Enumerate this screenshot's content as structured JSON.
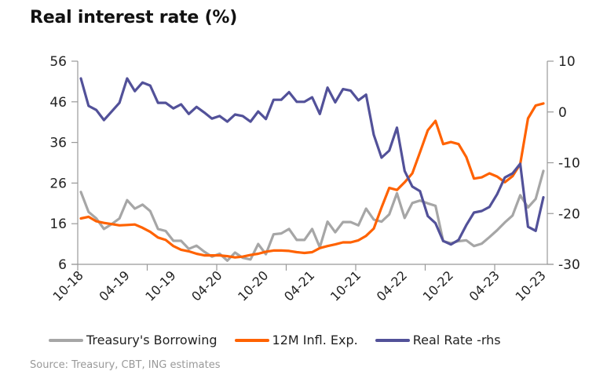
{
  "header": {
    "title": "Real interest rate (%)"
  },
  "source": "Source: Treasury, CBT, ING estimates",
  "chart_data": {
    "type": "line",
    "title": "Real interest rate (%)",
    "xlabel": "",
    "ylabel": "",
    "x_tick_labels": [
      "10-18",
      "04-19",
      "10-19",
      "04-20",
      "10-20",
      "04-21",
      "10-21",
      "04-22",
      "10-22",
      "04-23",
      "10-23"
    ],
    "left_axis": {
      "ticks": [
        56,
        46,
        36,
        26,
        16,
        6
      ],
      "ylim": [
        6,
        56
      ]
    },
    "right_axis": {
      "ticks": [
        10,
        0,
        -10,
        -20,
        -30
      ],
      "ylim": [
        -30,
        10
      ]
    },
    "grid": false,
    "legend_position": "bottom",
    "series": [
      {
        "name": "Treasury's Borrowing",
        "axis": "left",
        "color": "#a6a6a6",
        "values": [
          23.8,
          18.9,
          17.3,
          14.7,
          15.9,
          17.3,
          21.8,
          19.7,
          20.7,
          19.1,
          14.7,
          14.2,
          11.8,
          11.8,
          9.8,
          10.6,
          9.1,
          7.9,
          8.6,
          6.9,
          8.9,
          7.6,
          7.2,
          11.0,
          8.5,
          13.4,
          13.6,
          14.7,
          12.0,
          12.0,
          14.7,
          10.2,
          16.5,
          13.9,
          16.4,
          16.4,
          15.6,
          19.7,
          17.0,
          16.5,
          18.3,
          23.5,
          17.4,
          21.1,
          21.7,
          21.0,
          20.4,
          11.7,
          11.2,
          11.7,
          11.9,
          10.5,
          11.1,
          12.7,
          14.4,
          16.3,
          18.0,
          23.0,
          20.0,
          22.1,
          29.0
        ]
      },
      {
        "name": "12M Infl. Exp.",
        "axis": "left",
        "color": "#ff6200",
        "values": [
          17.3,
          17.7,
          16.6,
          16.2,
          15.9,
          15.6,
          15.7,
          15.8,
          15.0,
          14.0,
          12.6,
          12.0,
          10.5,
          9.6,
          9.2,
          8.6,
          8.2,
          8.2,
          8.2,
          8.0,
          7.7,
          7.9,
          8.3,
          8.6,
          9.1,
          9.4,
          9.4,
          9.3,
          9.0,
          8.8,
          9.0,
          10.0,
          10.5,
          10.9,
          11.4,
          11.4,
          11.9,
          13.0,
          14.8,
          20.0,
          24.8,
          24.3,
          26.2,
          28.4,
          33.6,
          39.0,
          41.3,
          35.6,
          36.1,
          35.6,
          32.4,
          27.1,
          27.4,
          28.4,
          27.6,
          26.2,
          27.7,
          30.7,
          41.9,
          45.1,
          45.6
        ]
      },
      {
        "name": "Real Rate -rhs",
        "axis": "right",
        "color": "#525199",
        "values": [
          6.6,
          1.2,
          0.4,
          -1.6,
          0.1,
          1.8,
          6.6,
          4.1,
          5.8,
          5.2,
          1.8,
          1.8,
          0.7,
          1.5,
          -0.4,
          1.0,
          -0.1,
          -1.3,
          -0.8,
          -1.9,
          -0.5,
          -0.8,
          -1.9,
          0.1,
          -1.4,
          2.4,
          2.4,
          3.9,
          2.0,
          2.0,
          2.9,
          -0.4,
          4.8,
          1.9,
          4.5,
          4.2,
          2.3,
          3.4,
          -4.5,
          -9.0,
          -7.6,
          -3.1,
          -11.6,
          -14.7,
          -15.6,
          -20.5,
          -21.9,
          -25.4,
          -26.1,
          -25.2,
          -22.3,
          -19.8,
          -19.5,
          -18.7,
          -16.2,
          -12.9,
          -12.1,
          -10.2,
          -22.6,
          -23.4,
          -16.8
        ]
      }
    ]
  }
}
